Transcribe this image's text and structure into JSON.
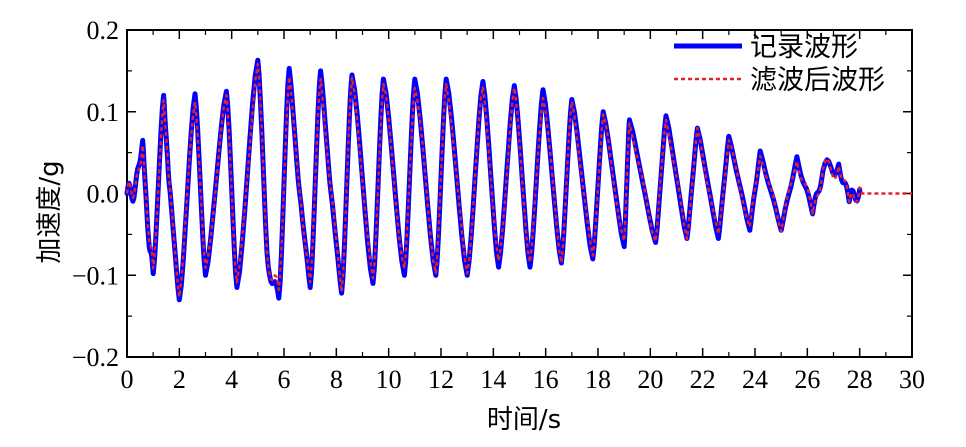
{
  "chart_data": {
    "type": "line",
    "title": "",
    "xlabel": "时间/s",
    "ylabel": "加速度/g",
    "xlim": [
      0,
      30
    ],
    "ylim": [
      -0.2,
      0.2
    ],
    "x_ticks": [
      0,
      2,
      4,
      6,
      8,
      10,
      12,
      14,
      16,
      18,
      20,
      22,
      24,
      26,
      28,
      30
    ],
    "x_tick_labels": [
      "0",
      "2",
      "4",
      "6",
      "8",
      "10",
      "12",
      "14",
      "16",
      "18",
      "20",
      "22",
      "24",
      "26",
      "28",
      "30"
    ],
    "y_ticks": [
      -0.2,
      -0.1,
      0.0,
      0.1,
      0.2
    ],
    "y_tick_labels": [
      "−0.2",
      "−0.1",
      "0.0",
      "0.1",
      "0.2"
    ],
    "grid": false,
    "legend_position": "top-right",
    "series": [
      {
        "name": "记录波形",
        "color": "#0000ff",
        "style": "solid",
        "peaks": [
          {
            "t": 0.6,
            "v": 0.065
          },
          {
            "t": 0.8,
            "v": -0.045
          },
          {
            "t": 1.0,
            "v": -0.098
          },
          {
            "t": 1.4,
            "v": 0.12
          },
          {
            "t": 1.6,
            "v": 0.015
          },
          {
            "t": 2.0,
            "v": -0.13
          },
          {
            "t": 2.6,
            "v": 0.122
          },
          {
            "t": 3.0,
            "v": -0.1
          },
          {
            "t": 3.8,
            "v": 0.125
          },
          {
            "t": 4.2,
            "v": -0.115
          },
          {
            "t": 5.0,
            "v": 0.163
          },
          {
            "t": 5.4,
            "v": -0.09
          },
          {
            "t": 5.8,
            "v": -0.128
          },
          {
            "t": 6.2,
            "v": 0.153
          },
          {
            "t": 6.6,
            "v": 0.0
          },
          {
            "t": 7.0,
            "v": -0.115
          },
          {
            "t": 7.4,
            "v": 0.15
          },
          {
            "t": 7.8,
            "v": 0.0
          },
          {
            "t": 8.2,
            "v": -0.122
          },
          {
            "t": 8.6,
            "v": 0.145
          },
          {
            "t": 9.4,
            "v": -0.11
          },
          {
            "t": 9.8,
            "v": 0.14
          },
          {
            "t": 10.6,
            "v": -0.1
          },
          {
            "t": 11.0,
            "v": 0.14
          },
          {
            "t": 11.8,
            "v": -0.1
          },
          {
            "t": 12.2,
            "v": 0.14
          },
          {
            "t": 13.0,
            "v": -0.1
          },
          {
            "t": 13.6,
            "v": 0.137
          },
          {
            "t": 14.2,
            "v": -0.09
          },
          {
            "t": 14.8,
            "v": 0.132
          },
          {
            "t": 15.4,
            "v": -0.09
          },
          {
            "t": 15.9,
            "v": 0.127
          },
          {
            "t": 16.6,
            "v": -0.085
          },
          {
            "t": 17.0,
            "v": 0.115
          },
          {
            "t": 17.8,
            "v": -0.08
          },
          {
            "t": 18.2,
            "v": 0.1
          },
          {
            "t": 19.0,
            "v": -0.065
          },
          {
            "t": 19.2,
            "v": 0.09
          },
          {
            "t": 20.2,
            "v": -0.06
          },
          {
            "t": 20.6,
            "v": 0.095
          },
          {
            "t": 21.4,
            "v": -0.055
          },
          {
            "t": 21.8,
            "v": 0.08
          },
          {
            "t": 22.6,
            "v": -0.055
          },
          {
            "t": 23.0,
            "v": 0.07
          },
          {
            "t": 23.8,
            "v": -0.045
          },
          {
            "t": 24.2,
            "v": 0.052
          },
          {
            "t": 25.0,
            "v": -0.045
          },
          {
            "t": 25.6,
            "v": 0.045
          },
          {
            "t": 26.2,
            "v": -0.025
          },
          {
            "t": 26.6,
            "v": 0.028
          },
          {
            "t": 27.2,
            "v": 0.036
          },
          {
            "t": 27.6,
            "v": -0.01
          },
          {
            "t": 28.0,
            "v": 0.005
          }
        ]
      },
      {
        "name": "滤波后波形",
        "color": "#e8202a",
        "style": "dotted",
        "extends_to": 30
      }
    ]
  }
}
